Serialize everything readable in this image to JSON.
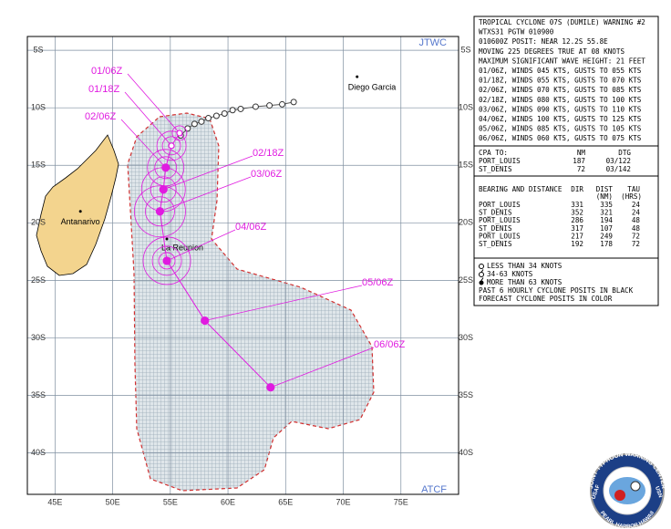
{
  "map": {
    "corner_top": "JTWC",
    "corner_bottom": "ATCF",
    "lon_range": [
      42.6,
      80.0
    ],
    "lat_range": [
      3.8,
      43.6
    ],
    "lon_ticks": [
      {
        "value": 45,
        "label": "45E"
      },
      {
        "value": 50,
        "label": "50E"
      },
      {
        "value": 55,
        "label": "55E"
      },
      {
        "value": 60,
        "label": "60E"
      },
      {
        "value": 65,
        "label": "65E"
      },
      {
        "value": 70,
        "label": "70E"
      },
      {
        "value": 75,
        "label": "75E"
      }
    ],
    "lat_ticks": [
      {
        "value": 5,
        "label": "5S"
      },
      {
        "value": 10,
        "label": "10S"
      },
      {
        "value": 15,
        "label": "15S"
      },
      {
        "value": 20,
        "label": "20S"
      },
      {
        "value": 25,
        "label": "25S"
      },
      {
        "value": 30,
        "label": "30S"
      },
      {
        "value": 35,
        "label": "35S"
      },
      {
        "value": 40,
        "label": "40S"
      }
    ],
    "places": [
      {
        "name": "Diego Garcia",
        "lat": 7.3,
        "lon": 71.2
      },
      {
        "name": "Antanarivo",
        "lat": 19.0,
        "lon": 47.2
      },
      {
        "name": "La Reunion",
        "lat": 21.4,
        "lon": 54.7
      }
    ],
    "past_track": {
      "lat": [
        9.5,
        9.7,
        9.8,
        9.9,
        10.1,
        10.2,
        10.5,
        10.7,
        10.9,
        11.2,
        11.4,
        11.8,
        12.4
      ],
      "lon": [
        65.7,
        64.7,
        63.6,
        62.4,
        61.1,
        60.4,
        59.7,
        59.0,
        58.3,
        57.7,
        57.1,
        56.5,
        55.9
      ]
    },
    "forecast": [
      {
        "label": "01/06Z",
        "lat": 12.2,
        "lon": 55.8
      },
      {
        "label": "01/18Z",
        "lat": 13.3,
        "lon": 55.1
      },
      {
        "label": "02/06Z",
        "lat": 15.2,
        "lon": 54.6
      },
      {
        "label": "02/18Z",
        "lat": 17.1,
        "lon": 54.4
      },
      {
        "label": "03/06Z",
        "lat": 19.0,
        "lon": 54.1
      },
      {
        "label": "04/06Z",
        "lat": 23.3,
        "lon": 54.7
      },
      {
        "label": "05/06Z",
        "lat": 28.5,
        "lon": 58.0
      },
      {
        "label": "06/06Z",
        "lat": 34.3,
        "lon": 63.7
      }
    ]
  },
  "warning": {
    "lines": [
      "TROPICAL CYCLONE 07S (DUMILE) WARNING #2",
      "WTXS31 PGTW 010900",
      "010600Z POSIT: NEAR 12.2S 55.8E",
      "MOVING 225 DEGREES TRUE AT 08 KNOTS",
      "MAXIMUM SIGNIFICANT WAVE HEIGHT: 21 FEET",
      "01/06Z, WINDS 045 KTS, GUSTS TO 055 KTS",
      "01/18Z, WINDS 055 KTS, GUSTS TO 070 KTS",
      "02/06Z, WINDS 070 KTS, GUSTS TO 085 KTS",
      "02/18Z, WINDS 080 KTS, GUSTS TO 100 KTS",
      "03/06Z, WINDS 090 KTS, GUSTS TO 110 KTS",
      "04/06Z, WINDS 100 KTS, GUSTS TO 125 KTS",
      "05/06Z, WINDS 085 KTS, GUSTS TO 105 KTS",
      "06/06Z, WINDS 060 KTS, GUSTS TO 075 KTS"
    ]
  },
  "cpa": {
    "header": [
      "CPA TO:",
      "NM",
      "DTG"
    ],
    "rows": [
      [
        "PORT_LOUIS",
        "187",
        "03/122"
      ],
      [
        "ST_DENIS",
        "72",
        "03/142"
      ]
    ]
  },
  "bearing": {
    "header": [
      "BEARING AND DISTANCE",
      "DIR",
      "DIST",
      "TAU"
    ],
    "units": [
      "(NM)",
      "(HRS)"
    ],
    "rows": [
      [
        "PORT_LOUIS",
        "331",
        "335",
        "24"
      ],
      [
        "ST_DENIS",
        "352",
        "321",
        "24"
      ],
      [
        "PORT_LOUIS",
        "286",
        "194",
        "48"
      ],
      [
        "ST_DENIS",
        "317",
        "107",
        "48"
      ],
      [
        "PORT_LOUIS",
        "217",
        "249",
        "72"
      ],
      [
        "ST_DENIS",
        "192",
        "178",
        "72"
      ]
    ]
  },
  "legend": [
    "LESS THAN 34 KNOTS",
    "34-63 KNOTS",
    "MORE THAN 63 KNOTS",
    "PAST 6 HOURLY CYCLONE POSITS IN BLACK",
    "FORECAST CYCLONE POSITS IN COLOR"
  ],
  "logo": {
    "ring_top": "JOINT TYPHOON WARNING CENTER",
    "ring_left": "USAF",
    "ring_right": "USN",
    "ring_bottom": "PEARL HARBOR HAWAII"
  }
}
